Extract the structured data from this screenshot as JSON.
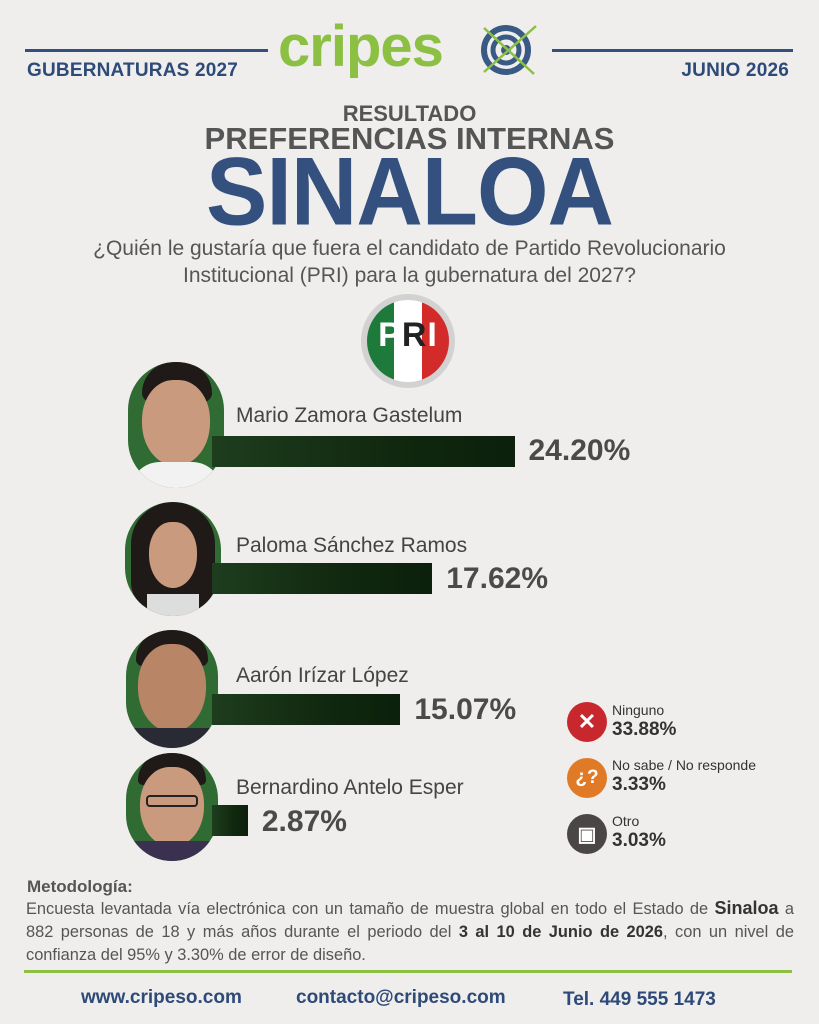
{
  "header": {
    "left_label": "GUBERNATURAS 2027",
    "right_label": "JUNIO 2026",
    "logo_text_green": "cripes",
    "logo_text_blue": "",
    "brand_green": "#8cc043",
    "brand_blue": "#2d4a78"
  },
  "titles": {
    "result": "RESULTADO",
    "preferences": "PREFERENCIAS INTERNAS",
    "state": "SINALOA",
    "question_line1": "¿Quién le gustaría que fuera el candidato de Partido Revolucionario",
    "question_line2": "Institucional (PRI) para la gubernatura del 2027?"
  },
  "party_logo": {
    "letters": [
      "P",
      "R",
      "I"
    ],
    "colors": [
      "#1e7a3a",
      "#ffffff",
      "#d32a2a"
    ]
  },
  "chart_data": {
    "type": "bar",
    "orientation": "horizontal",
    "categories": [
      "Mario Zamora Gastelum",
      "Paloma Sánchez Ramos",
      "Aarón Irízar López",
      "Bernardino Antelo Esper"
    ],
    "values": [
      24.2,
      17.62,
      15.07,
      2.87
    ],
    "value_labels": [
      "24.20%",
      "17.62%",
      "15.07%",
      "2.87%"
    ],
    "bar_color": "#13300f",
    "grid": false,
    "other_responses": [
      {
        "label": "Ninguno",
        "value": 33.88,
        "value_label": "33.88%",
        "icon": "x-icon",
        "color": "#c8282d",
        "glyph": "✕"
      },
      {
        "label": "No sabe / No responde",
        "value": 3.33,
        "value_label": "3.33%",
        "icon": "question-icon",
        "color": "#e07a27",
        "glyph": "¿?"
      },
      {
        "label": "Otro",
        "value": 3.03,
        "value_label": "3.03%",
        "icon": "ballot-box-icon",
        "color": "#4a4646",
        "glyph": "▣"
      }
    ]
  },
  "methodology": {
    "title": "Metodología:",
    "text_a": "Encuesta levantada vía electrónica con un tamaño de muestra global en todo el Estado de ",
    "state": "Sinaloa",
    "text_b": " a 882 personas de 18 y más años durante el periodo del ",
    "period": "3 al 10 de Junio de 2026",
    "text_c": ", con un nivel de confianza del 95% y 3.30% de error de diseño."
  },
  "footer": {
    "website": "www.cripeso.com",
    "email": "contacto@cripeso.com",
    "phone": "Tel. 449 555 1473"
  }
}
